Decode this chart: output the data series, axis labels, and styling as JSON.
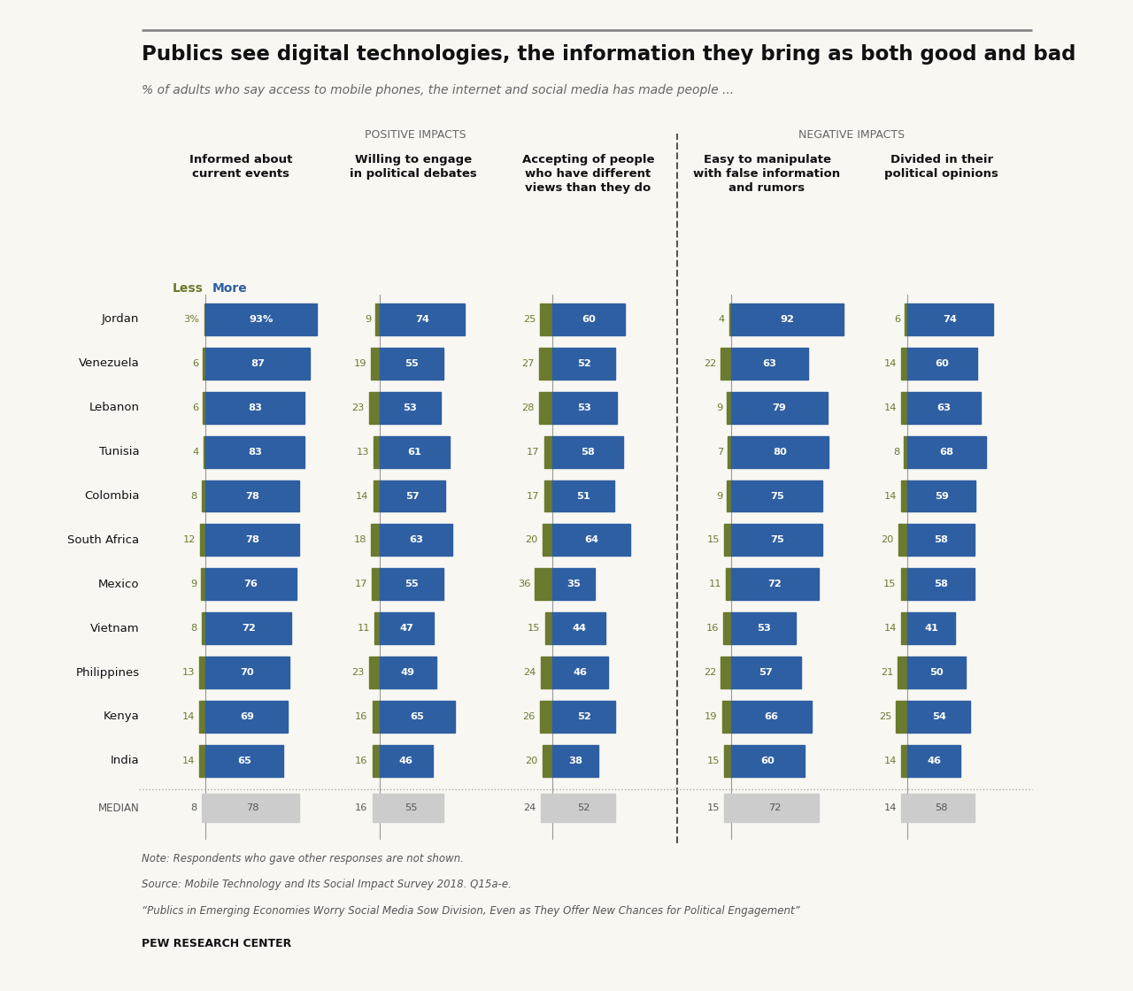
{
  "title": "Publics see digital technologies, the information they bring as both good and bad",
  "subtitle": "% of adults who say access to mobile phones, the internet and social media has made people ...",
  "positive_label": "POSITIVE IMPACTS",
  "negative_label": "NEGATIVE IMPACTS",
  "col_headers": [
    "Informed about\ncurrent events",
    "Willing to engage\nin political debates",
    "Accepting of people\nwho have different\nviews than they do",
    "Easy to manipulate\nwith false information\nand rumors",
    "Divided in their\npolitical opinions"
  ],
  "countries": [
    "Jordan",
    "Venezuela",
    "Lebanon",
    "Tunisia",
    "Colombia",
    "South Africa",
    "Mexico",
    "Vietnam",
    "Philippines",
    "Kenya",
    "India"
  ],
  "less_color": "#6b7a2e",
  "more_color": "#2e5fa3",
  "median_color": "#cccccc",
  "data_less": [
    [
      3,
      9,
      25,
      4,
      6
    ],
    [
      6,
      19,
      27,
      22,
      14
    ],
    [
      6,
      23,
      28,
      9,
      14
    ],
    [
      4,
      13,
      17,
      7,
      8
    ],
    [
      8,
      14,
      17,
      9,
      14
    ],
    [
      12,
      18,
      20,
      15,
      20
    ],
    [
      9,
      17,
      36,
      11,
      15
    ],
    [
      8,
      11,
      15,
      16,
      14
    ],
    [
      13,
      23,
      24,
      22,
      21
    ],
    [
      14,
      16,
      26,
      19,
      25
    ],
    [
      14,
      16,
      20,
      15,
      14
    ]
  ],
  "data_more": [
    [
      93,
      74,
      60,
      92,
      74
    ],
    [
      87,
      55,
      52,
      63,
      60
    ],
    [
      83,
      53,
      53,
      79,
      63
    ],
    [
      83,
      61,
      58,
      80,
      68
    ],
    [
      78,
      57,
      51,
      75,
      59
    ],
    [
      78,
      63,
      64,
      75,
      58
    ],
    [
      76,
      55,
      35,
      72,
      58
    ],
    [
      72,
      47,
      44,
      53,
      41
    ],
    [
      70,
      49,
      46,
      57,
      50
    ],
    [
      69,
      65,
      52,
      66,
      54
    ],
    [
      65,
      46,
      38,
      60,
      46
    ]
  ],
  "median_less": [
    8,
    16,
    24,
    15,
    14
  ],
  "median_more": [
    78,
    55,
    52,
    72,
    58
  ],
  "note1": "Note: Respondents who gave other responses are not shown.",
  "note2": "Source: Mobile Technology and Its Social Impact Survey 2018. Q15a-e.",
  "note3": "“Publics in Emerging Economies Worry Social Media Sow Division, Even as They Offer New Chances for Political Engagement”",
  "credit": "PEW RESEARCH CENTER",
  "bg_color": "#f9f7f2",
  "less_label": "Less",
  "more_label": "More"
}
